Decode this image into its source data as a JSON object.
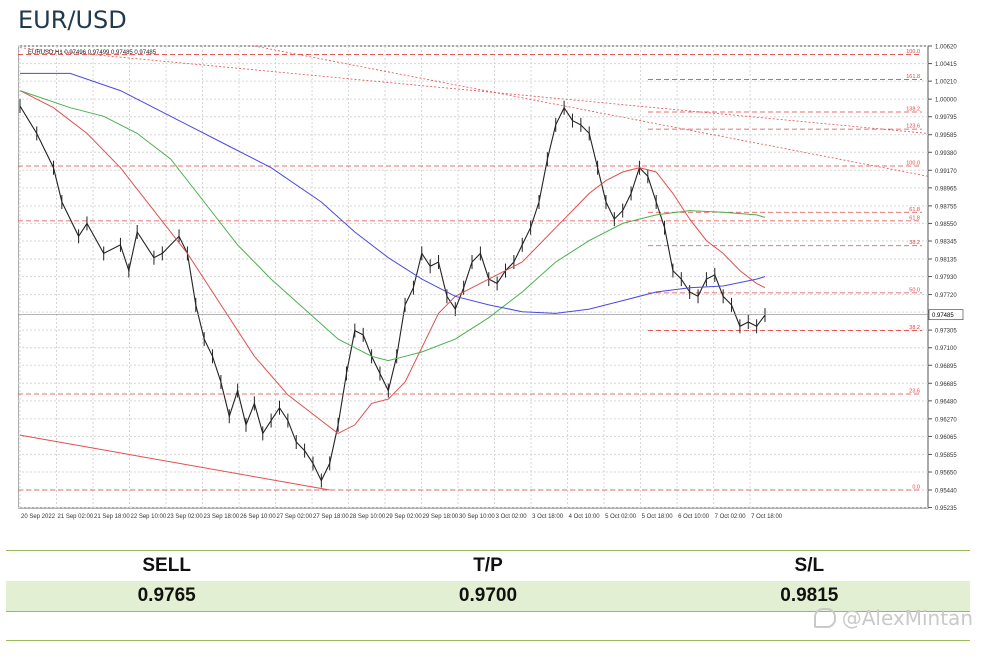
{
  "header": {
    "title": "EUR/USD"
  },
  "chart_data": {
    "type": "line",
    "symbol_label": "EURUSD,H1",
    "ohlc_label": "0.97496 0.97499 0.97485 0.97485",
    "current_price": 0.97485,
    "current_price_label": "0.97485",
    "ylim": [
      0.9523,
      1.0062
    ],
    "y_ticks": [
      "1.00620",
      "1.00415",
      "1.00210",
      "1.00000",
      "0.99795",
      "0.99585",
      "0.99380",
      "0.99170",
      "0.98965",
      "0.98755",
      "0.98550",
      "0.98345",
      "0.98135",
      "0.97930",
      "0.97720",
      "0.97515",
      "0.97305",
      "0.97100",
      "0.96895",
      "0.96685",
      "0.96480",
      "0.96270",
      "0.96065",
      "0.95855",
      "0.95650",
      "0.95440",
      "0.95235"
    ],
    "x_ticks": [
      "20 Sep 2022",
      "21 Sep 02:00",
      "21 Sep 18:00",
      "22 Sep 10:00",
      "23 Sep 02:00",
      "23 Sep 18:00",
      "26 Sep 10:00",
      "27 Sep 02:00",
      "27 Sep 18:00",
      "28 Sep 10:00",
      "29 Sep 02:00",
      "29 Sep 18:00",
      "30 Sep 10:00",
      "3 Oct 02:00",
      "3 Oct 18:00",
      "4 Oct 10:00",
      "5 Oct 02:00",
      "5 Oct 18:00",
      "6 Oct 10:00",
      "7 Oct 02:00",
      "7 Oct 18:00"
    ],
    "series": [
      {
        "color": "#222222",
        "values": [
          [
            0,
            0.9992
          ],
          [
            2,
            0.996
          ],
          [
            4,
            0.992
          ],
          [
            5,
            0.988
          ],
          [
            7,
            0.984
          ],
          [
            8,
            0.9855
          ],
          [
            10,
            0.982
          ],
          [
            12,
            0.983
          ],
          [
            13,
            0.98
          ],
          [
            14,
            0.9845
          ],
          [
            16,
            0.9815
          ],
          [
            17,
            0.982
          ],
          [
            19,
            0.984
          ],
          [
            20,
            0.982
          ],
          [
            21,
            0.976
          ],
          [
            22,
            0.972
          ],
          [
            23,
            0.97
          ],
          [
            24,
            0.967
          ],
          [
            25,
            0.963
          ],
          [
            26,
            0.966
          ],
          [
            27,
            0.962
          ],
          [
            28,
            0.9645
          ],
          [
            29,
            0.961
          ],
          [
            30,
            0.9625
          ],
          [
            31,
            0.964
          ],
          [
            32,
            0.9625
          ],
          [
            33,
            0.96
          ],
          [
            34,
            0.959
          ],
          [
            35,
            0.9575
          ],
          [
            36,
            0.9555
          ],
          [
            37,
            0.9575
          ],
          [
            38,
            0.962
          ],
          [
            39,
            0.968
          ],
          [
            40,
            0.973
          ],
          [
            41,
            0.9725
          ],
          [
            42,
            0.97
          ],
          [
            43,
            0.968
          ],
          [
            44,
            0.966
          ],
          [
            45,
            0.97
          ],
          [
            46,
            0.976
          ],
          [
            47,
            0.978
          ],
          [
            48,
            0.982
          ],
          [
            49,
            0.9805
          ],
          [
            50,
            0.981
          ],
          [
            51,
            0.977
          ],
          [
            52,
            0.9755
          ],
          [
            53,
            0.978
          ],
          [
            54,
            0.981
          ],
          [
            55,
            0.982
          ],
          [
            56,
            0.979
          ],
          [
            57,
            0.9785
          ],
          [
            58,
            0.98
          ],
          [
            59,
            0.981
          ],
          [
            60,
            0.983
          ],
          [
            61,
            0.985
          ],
          [
            62,
            0.988
          ],
          [
            63,
            0.993
          ],
          [
            64,
            0.997
          ],
          [
            65,
            0.999
          ],
          [
            66,
            0.9975
          ],
          [
            67,
            0.997
          ],
          [
            68,
            0.996
          ],
          [
            69,
            0.992
          ],
          [
            70,
            0.988
          ],
          [
            71,
            0.986
          ],
          [
            72,
            0.987
          ],
          [
            73,
            0.989
          ],
          [
            74,
            0.992
          ],
          [
            75,
            0.991
          ],
          [
            76,
            0.988
          ],
          [
            77,
            0.985
          ],
          [
            78,
            0.98
          ],
          [
            79,
            0.979
          ],
          [
            80,
            0.9775
          ],
          [
            81,
            0.977
          ],
          [
            82,
            0.979
          ],
          [
            83,
            0.9795
          ],
          [
            84,
            0.977
          ],
          [
            85,
            0.976
          ],
          [
            86,
            0.9735
          ],
          [
            87,
            0.974
          ],
          [
            88,
            0.9735
          ],
          [
            89,
            0.9748
          ]
        ]
      },
      {
        "color": "#e05050",
        "values": [
          [
            0,
            1.001
          ],
          [
            4,
            0.999
          ],
          [
            8,
            0.996
          ],
          [
            12,
            0.992
          ],
          [
            16,
            0.987
          ],
          [
            20,
            0.982
          ],
          [
            24,
            0.976
          ],
          [
            28,
            0.97
          ],
          [
            32,
            0.9655
          ],
          [
            36,
            0.9625
          ],
          [
            38,
            0.961
          ],
          [
            40,
            0.962
          ],
          [
            42,
            0.9645
          ],
          [
            44,
            0.965
          ],
          [
            46,
            0.967
          ],
          [
            48,
            0.971
          ],
          [
            50,
            0.975
          ],
          [
            52,
            0.977
          ],
          [
            54,
            0.978
          ],
          [
            56,
            0.979
          ],
          [
            58,
            0.98
          ],
          [
            60,
            0.981
          ],
          [
            62,
            0.983
          ],
          [
            64,
            0.985
          ],
          [
            66,
            0.987
          ],
          [
            68,
            0.989
          ],
          [
            70,
            0.9905
          ],
          [
            72,
            0.9915
          ],
          [
            74,
            0.992
          ],
          [
            76,
            0.9915
          ],
          [
            78,
            0.989
          ],
          [
            80,
            0.986
          ],
          [
            82,
            0.9835
          ],
          [
            84,
            0.982
          ],
          [
            86,
            0.98
          ],
          [
            88,
            0.9785
          ],
          [
            89,
            0.978
          ]
        ]
      },
      {
        "color": "#4caf50",
        "values": [
          [
            0,
            1.001
          ],
          [
            6,
            0.999
          ],
          [
            10,
            0.998
          ],
          [
            14,
            0.996
          ],
          [
            18,
            0.993
          ],
          [
            22,
            0.988
          ],
          [
            26,
            0.983
          ],
          [
            30,
            0.979
          ],
          [
            34,
            0.9755
          ],
          [
            38,
            0.972
          ],
          [
            42,
            0.97
          ],
          [
            44,
            0.9695
          ],
          [
            46,
            0.97
          ],
          [
            48,
            0.9705
          ],
          [
            52,
            0.972
          ],
          [
            56,
            0.9745
          ],
          [
            60,
            0.9775
          ],
          [
            64,
            0.981
          ],
          [
            68,
            0.9835
          ],
          [
            72,
            0.9855
          ],
          [
            76,
            0.9865
          ],
          [
            80,
            0.987
          ],
          [
            84,
            0.9868
          ],
          [
            88,
            0.9865
          ],
          [
            89,
            0.9862
          ]
        ]
      },
      {
        "color": "#4a4adf",
        "values": [
          [
            0,
            1.003
          ],
          [
            6,
            1.003
          ],
          [
            12,
            1.001
          ],
          [
            18,
            0.998
          ],
          [
            24,
            0.995
          ],
          [
            30,
            0.992
          ],
          [
            36,
            0.988
          ],
          [
            40,
            0.9845
          ],
          [
            44,
            0.9815
          ],
          [
            48,
            0.979
          ],
          [
            52,
            0.977
          ],
          [
            56,
            0.976
          ],
          [
            60,
            0.9752
          ],
          [
            64,
            0.975
          ],
          [
            68,
            0.9755
          ],
          [
            72,
            0.9765
          ],
          [
            76,
            0.9775
          ],
          [
            80,
            0.978
          ],
          [
            84,
            0.9782
          ],
          [
            88,
            0.979
          ],
          [
            89,
            0.9793
          ]
        ]
      }
    ],
    "fib_levels": [
      {
        "label": "0.0",
        "value": 0.9544
      },
      {
        "label": "23.6",
        "value": 0.9656
      },
      {
        "label": "38.2",
        "value": 0.973
      },
      {
        "label": "50.0",
        "value": 0.9774
      },
      {
        "label": "38.2",
        "value": 0.9829
      },
      {
        "label": "61.8",
        "value": 0.9858
      },
      {
        "label": "61.8",
        "value": 0.9868
      },
      {
        "label": "100.0",
        "value": 0.9922
      },
      {
        "label": "123.6",
        "value": 0.9965
      },
      {
        "label": "138.2",
        "value": 0.9985
      },
      {
        "label": "161.8",
        "value": 1.0023
      },
      {
        "label": "100.0",
        "value": 1.0052
      }
    ],
    "grid": true
  },
  "table": {
    "headers": [
      "SELL",
      "T/P",
      "S/L"
    ],
    "values": [
      "0.9765",
      "0.9700",
      "0.9815"
    ]
  },
  "watermark": {
    "text": "@AlexMintan"
  }
}
